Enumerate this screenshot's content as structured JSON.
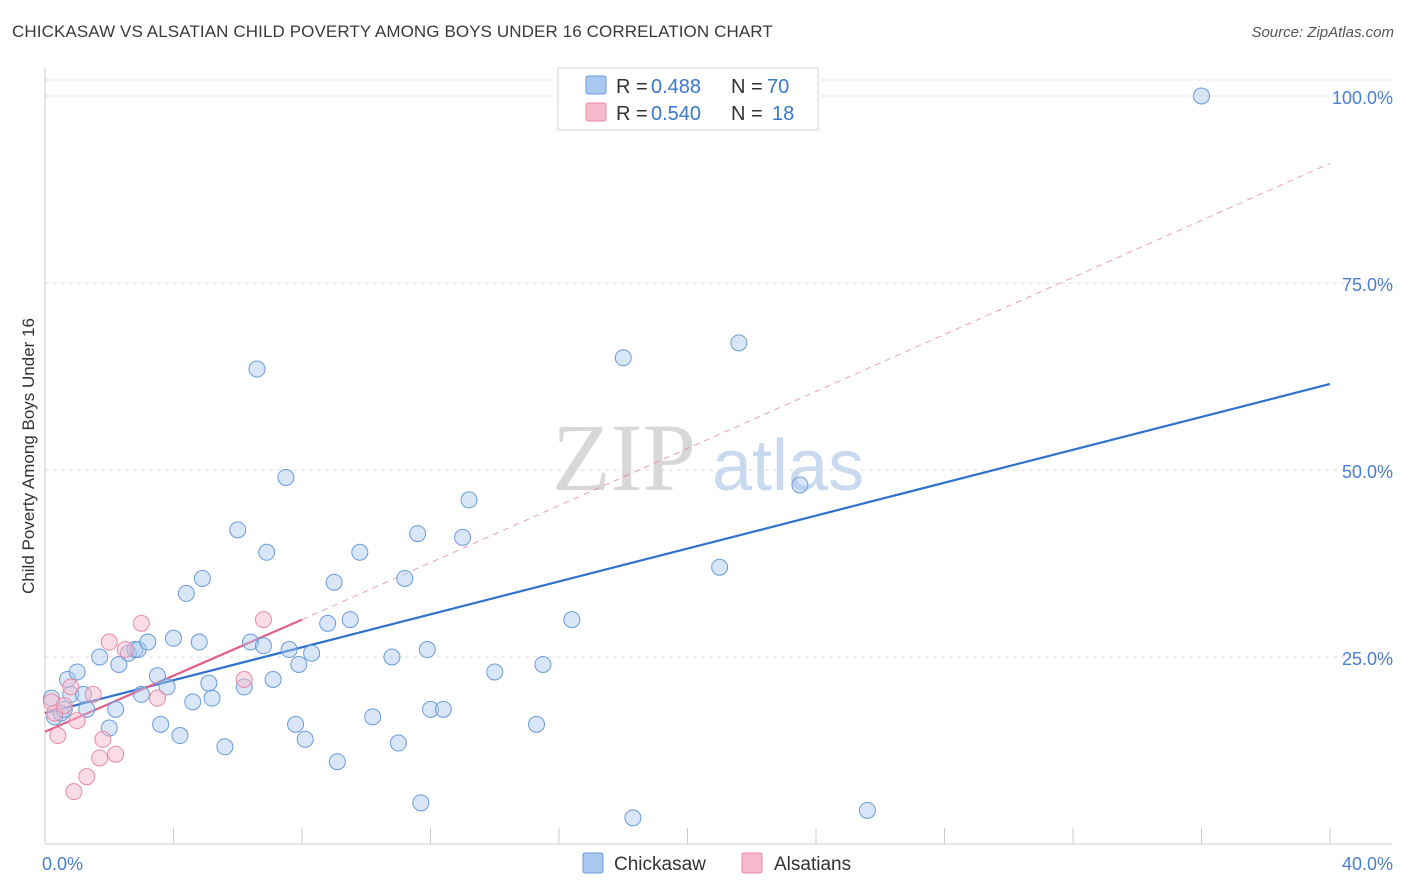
{
  "title": "CHICKASAW VS ALSATIAN CHILD POVERTY AMONG BOYS UNDER 16 CORRELATION CHART",
  "source": "Source: ZipAtlas.com",
  "watermark": {
    "zip": "ZIP",
    "atlas": "atlas"
  },
  "legend_top": [
    {
      "r_label": "R =",
      "r_value": "0.488",
      "n_label": "N =",
      "n_value": "70"
    },
    {
      "r_label": "R =",
      "r_value": "0.540",
      "n_label": "N =",
      "n_value": "18"
    }
  ],
  "legend_bottom": [
    "Chickasaw",
    "Alsatians"
  ],
  "colors": {
    "chickasaw_fill": "#a9c8f0",
    "chickasaw_stroke": "#6a9bd8",
    "chickasaw_line": "#2f72cc",
    "alsatian_fill": "#f6b9cb",
    "alsatian_stroke": "#e88aa6",
    "alsatian_line": "#e0608a",
    "grid": "#dddddd",
    "tick_text": "#4a7fd0"
  },
  "chart_data": {
    "type": "scatter",
    "title": "CHICKASAW VS ALSATIAN CHILD POVERTY AMONG BOYS UNDER 16 CORRELATION CHART",
    "xlabel": "",
    "ylabel": "Child Poverty Among Boys Under 16",
    "xlim": [
      0,
      40
    ],
    "ylim": [
      0,
      100
    ],
    "x_tick_labels": [
      "0.0%",
      "40.0%"
    ],
    "y_ticks": [
      25,
      50,
      75,
      100
    ],
    "y_tick_labels": [
      "25.0%",
      "50.0%",
      "75.0%",
      "100.0%"
    ],
    "grid": "horizontal dashed",
    "series": [
      {
        "name": "Chickasaw",
        "R": 0.488,
        "N": 70,
        "points": [
          [
            0.2,
            19.5
          ],
          [
            0.3,
            17.0
          ],
          [
            0.5,
            17.5
          ],
          [
            0.6,
            18.0
          ],
          [
            0.7,
            22.0
          ],
          [
            0.8,
            20.0
          ],
          [
            1.0,
            23.0
          ],
          [
            1.2,
            20.0
          ],
          [
            1.3,
            18.0
          ],
          [
            1.7,
            25.0
          ],
          [
            2.0,
            15.5
          ],
          [
            2.2,
            18.0
          ],
          [
            2.3,
            24.0
          ],
          [
            2.6,
            25.5
          ],
          [
            2.8,
            26.0
          ],
          [
            2.9,
            26.0
          ],
          [
            3.0,
            20.0
          ],
          [
            3.2,
            27.0
          ],
          [
            3.5,
            22.5
          ],
          [
            3.6,
            16.0
          ],
          [
            3.8,
            21.0
          ],
          [
            4.0,
            27.5
          ],
          [
            4.2,
            14.5
          ],
          [
            4.4,
            33.5
          ],
          [
            4.6,
            19.0
          ],
          [
            4.8,
            27.0
          ],
          [
            4.9,
            35.5
          ],
          [
            5.1,
            21.5
          ],
          [
            5.2,
            19.5
          ],
          [
            5.6,
            13.0
          ],
          [
            6.0,
            42.0
          ],
          [
            6.2,
            21.0
          ],
          [
            6.4,
            27.0
          ],
          [
            6.6,
            63.5
          ],
          [
            6.8,
            26.5
          ],
          [
            6.9,
            39.0
          ],
          [
            7.1,
            22.0
          ],
          [
            7.5,
            49.0
          ],
          [
            7.6,
            26.0
          ],
          [
            7.8,
            16.0
          ],
          [
            7.9,
            24.0
          ],
          [
            8.1,
            14.0
          ],
          [
            8.3,
            25.5
          ],
          [
            8.8,
            29.5
          ],
          [
            9.0,
            35.0
          ],
          [
            9.1,
            11.0
          ],
          [
            9.5,
            30.0
          ],
          [
            9.8,
            39.0
          ],
          [
            10.2,
            17.0
          ],
          [
            10.8,
            25.0
          ],
          [
            11.0,
            13.5
          ],
          [
            11.2,
            35.5
          ],
          [
            11.6,
            41.5
          ],
          [
            11.7,
            5.5
          ],
          [
            11.9,
            26.0
          ],
          [
            12.0,
            18.0
          ],
          [
            12.4,
            18.0
          ],
          [
            13.0,
            41.0
          ],
          [
            13.2,
            46.0
          ],
          [
            14.0,
            23.0
          ],
          [
            15.3,
            16.0
          ],
          [
            15.5,
            24.0
          ],
          [
            16.4,
            30.0
          ],
          [
            18.0,
            65.0
          ],
          [
            18.3,
            3.5
          ],
          [
            21.0,
            37.0
          ],
          [
            21.6,
            67.0
          ],
          [
            23.5,
            48.0
          ],
          [
            25.6,
            4.5
          ],
          [
            36.0,
            100.0
          ]
        ],
        "trend": {
          "x": [
            0,
            40
          ],
          "y": [
            17.5,
            61.5
          ]
        }
      },
      {
        "name": "Alsatians",
        "R": 0.54,
        "N": 18,
        "points": [
          [
            0.2,
            19.0
          ],
          [
            0.3,
            17.5
          ],
          [
            0.4,
            14.5
          ],
          [
            0.6,
            18.5
          ],
          [
            0.8,
            21.0
          ],
          [
            0.9,
            7.0
          ],
          [
            1.0,
            16.5
          ],
          [
            1.3,
            9.0
          ],
          [
            1.5,
            20.0
          ],
          [
            1.7,
            11.5
          ],
          [
            1.8,
            14.0
          ],
          [
            2.0,
            27.0
          ],
          [
            2.2,
            12.0
          ],
          [
            2.5,
            26.0
          ],
          [
            3.0,
            29.5
          ],
          [
            3.5,
            19.5
          ],
          [
            6.2,
            22.0
          ],
          [
            6.8,
            30.0
          ]
        ],
        "trend": {
          "x": [
            0,
            8
          ],
          "y": [
            15.0,
            30.0
          ]
        },
        "trend_extended": {
          "x": [
            8,
            40
          ],
          "y": [
            30.0,
            91.0
          ]
        }
      }
    ]
  }
}
